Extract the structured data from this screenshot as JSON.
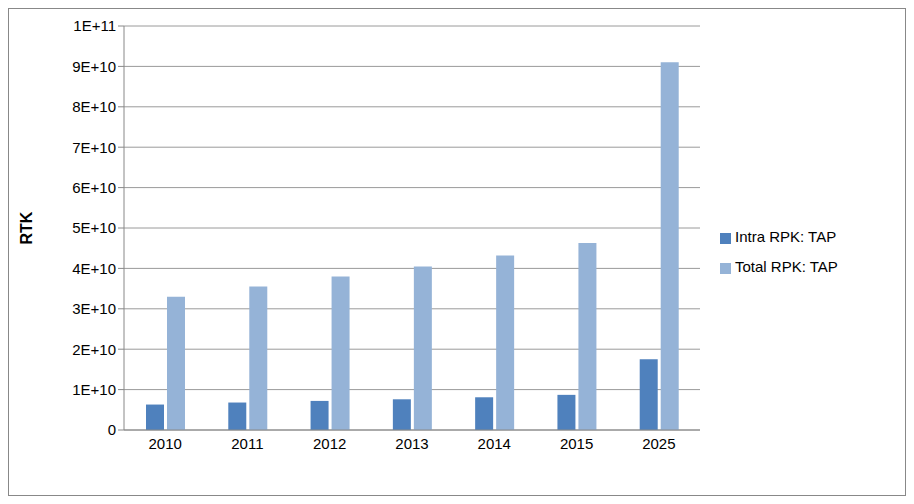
{
  "chart_data": {
    "type": "bar",
    "y_label": "RTK",
    "categories": [
      "2010",
      "2011",
      "2012",
      "2013",
      "2014",
      "2015",
      "2025"
    ],
    "series": [
      {
        "name": "Intra RPK: TAP",
        "color": "#4f81bd",
        "values": [
          6300000000,
          6800000000,
          7200000000,
          7600000000,
          8100000000,
          8700000000,
          17500000000
        ]
      },
      {
        "name": "Total RPK: TAP",
        "color": "#95b3d7",
        "values": [
          33000000000,
          35500000000,
          38000000000,
          40500000000,
          43200000000,
          46300000000,
          91000000000
        ]
      }
    ],
    "ylim": [
      0,
      100000000000
    ],
    "yticks": [
      0,
      {
        "value": 10000000000,
        "label": "1E+10"
      },
      {
        "value": 20000000000,
        "label": "2E+10"
      },
      {
        "value": 30000000000,
        "label": "3E+10"
      },
      {
        "value": 40000000000,
        "label": "4E+10"
      },
      {
        "value": 50000000000,
        "label": "5E+10"
      },
      {
        "value": 60000000000,
        "label": "6E+10"
      },
      {
        "value": 70000000000,
        "label": "7E+10"
      },
      {
        "value": 80000000000,
        "label": "8E+10"
      },
      {
        "value": 90000000000,
        "label": "9E+10"
      },
      {
        "value": 100000000000,
        "label": "1E+11"
      }
    ],
    "grid": true,
    "legend": "right"
  }
}
